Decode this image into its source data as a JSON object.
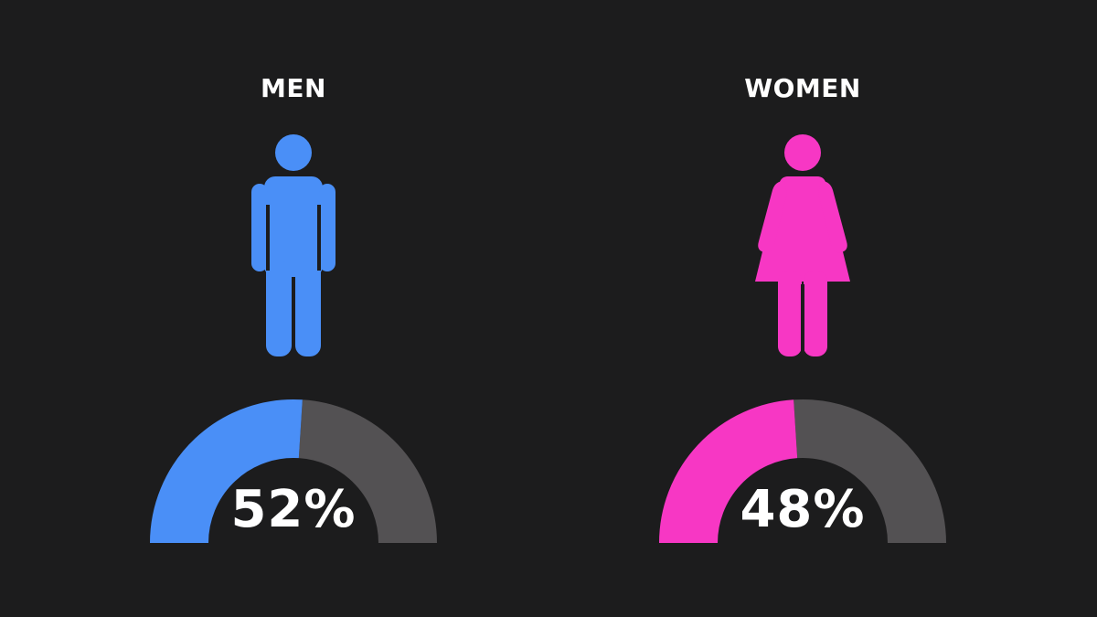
{
  "chart_data": {
    "type": "gauge",
    "items": [
      {
        "label": "MEN",
        "value": 52,
        "value_text": "52%",
        "color": "#4a8ff7",
        "icon": "man-icon"
      },
      {
        "label": "WOMEN",
        "value": 48,
        "value_text": "48%",
        "color": "#f737c4",
        "icon": "woman-icon"
      }
    ],
    "track_color": "#535153",
    "max": 100
  }
}
